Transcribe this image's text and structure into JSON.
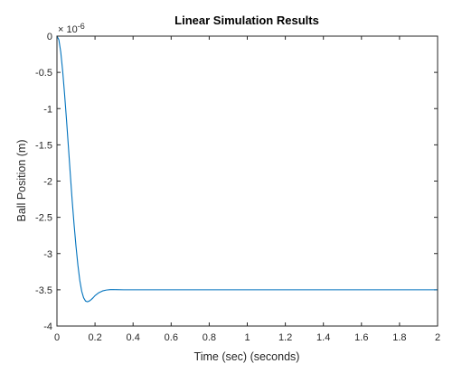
{
  "chart_data": {
    "type": "line",
    "title": "Linear Simulation Results",
    "xlabel": "Time (sec) (seconds)",
    "ylabel": "Ball Position (m)",
    "exponent_label": {
      "base": "× 10",
      "power": "-6"
    },
    "xlim": [
      0,
      2
    ],
    "ylim": [
      -4,
      0
    ],
    "x_ticks": [
      0,
      0.2,
      0.4,
      0.6,
      0.8,
      1,
      1.2,
      1.4,
      1.6,
      1.8,
      2
    ],
    "x_tick_labels": [
      "0",
      "0.2",
      "0.4",
      "0.6",
      "0.8",
      "1",
      "1.2",
      "1.4",
      "1.6",
      "1.8",
      "2"
    ],
    "y_ticks": [
      0,
      -0.5,
      -1,
      -1.5,
      -2,
      -2.5,
      -3,
      -3.5,
      -4
    ],
    "y_tick_labels": [
      "0",
      "-0.5",
      "-1",
      "-1.5",
      "-2",
      "-2.5",
      "-3",
      "-3.5",
      "-4"
    ],
    "grid": false,
    "legend": false,
    "series": [
      {
        "color": "#0072bd",
        "x": [
          0,
          0.01,
          0.02,
          0.03,
          0.04,
          0.05,
          0.06,
          0.07,
          0.08,
          0.09,
          0.1,
          0.11,
          0.12,
          0.13,
          0.14,
          0.15,
          0.16,
          0.17,
          0.18,
          0.19,
          0.2,
          0.22,
          0.24,
          0.26,
          0.28,
          0.3,
          0.35,
          0.4,
          0.5,
          0.6,
          0.8,
          1.0,
          1.2,
          1.4,
          1.6,
          1.8,
          2.0
        ],
        "y": [
          0,
          -0.05,
          -0.22,
          -0.48,
          -0.8,
          -1.15,
          -1.52,
          -1.9,
          -2.27,
          -2.6,
          -2.9,
          -3.16,
          -3.37,
          -3.52,
          -3.61,
          -3.655,
          -3.665,
          -3.655,
          -3.635,
          -3.61,
          -3.58,
          -3.54,
          -3.515,
          -3.503,
          -3.498,
          -3.498,
          -3.5,
          -3.5,
          -3.5,
          -3.5,
          -3.5,
          -3.5,
          -3.5,
          -3.5,
          -3.5,
          -3.5,
          -3.5
        ]
      }
    ]
  }
}
